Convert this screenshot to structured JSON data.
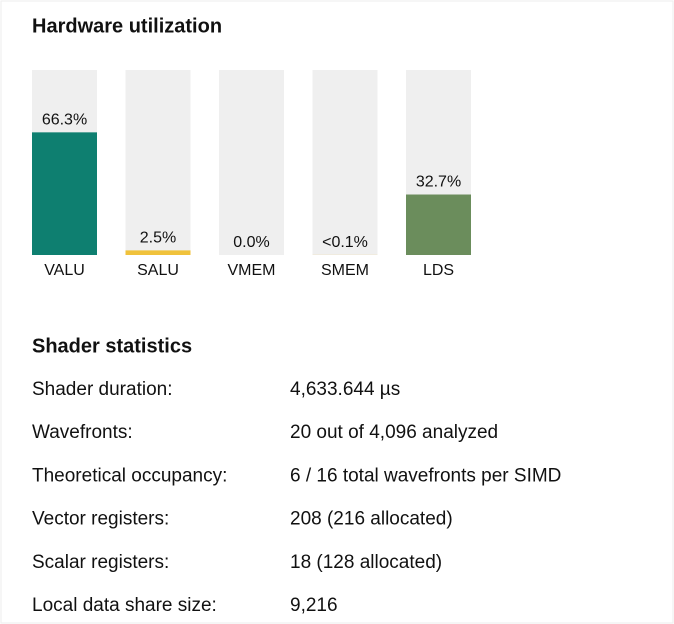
{
  "chart_data": {
    "type": "bar",
    "title": "Hardware utilization",
    "categories": [
      "VALU",
      "SALU",
      "VMEM",
      "SMEM",
      "LDS"
    ],
    "values": [
      66.3,
      2.5,
      0,
      0.05,
      32.7
    ],
    "value_labels": [
      "66.3%",
      "2.5%",
      "0.0%",
      "<0.1%",
      "32.7%"
    ],
    "colors": [
      "#0e7f70",
      "#f0c23c",
      "#c9c9c9",
      "#f0c23c",
      "#6b8d5c"
    ],
    "ylim": [
      0,
      100
    ]
  },
  "shader_statistics": {
    "title": "Shader statistics",
    "rows": [
      [
        "Shader duration:",
        "4,633.644 µs"
      ],
      [
        "Wavefronts:",
        "20 out of 4,096 analyzed"
      ],
      [
        "Theoretical occupancy:",
        "6 / 16 total wavefronts per SIMD"
      ],
      [
        "Vector registers:",
        "208 (216 allocated)"
      ],
      [
        "Scalar registers:",
        "18 (128 allocated)"
      ],
      [
        "Local data share size:",
        "9,216"
      ]
    ]
  }
}
